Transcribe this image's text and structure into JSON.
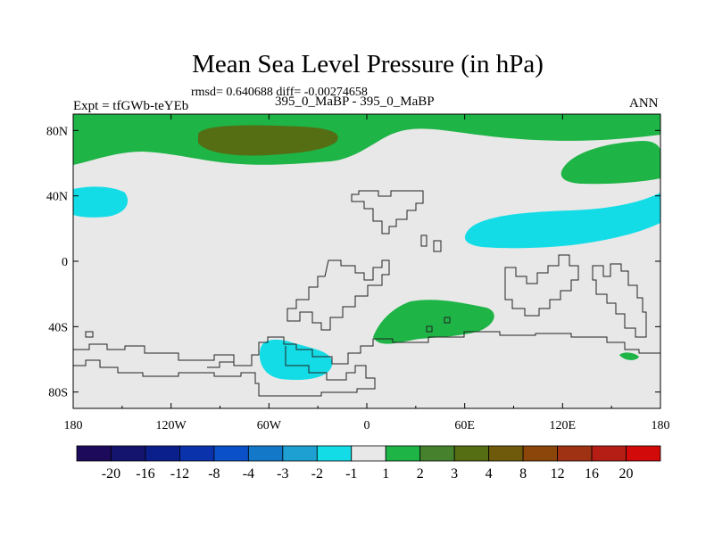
{
  "chart_data": {
    "type": "map-contour",
    "title": "Mean Sea Level Pressure (in hPa)",
    "stats_line": "rmsd= 0.640688 diff= -0.00274658",
    "experiment_label": "Expt = tfGWb-teYEb",
    "case_label": "395_0_MaBP - 395_0_MaBP",
    "season": "ANN",
    "x_axis": {
      "range": [
        -180,
        180
      ],
      "ticks": [
        -180,
        -120,
        -60,
        0,
        60,
        120,
        180
      ],
      "tick_labels": [
        "180",
        "120W",
        "60W",
        "0",
        "60E",
        "120E",
        "180"
      ]
    },
    "y_axis": {
      "range": [
        -90,
        90
      ],
      "ticks": [
        80,
        40,
        0,
        -40,
        -80
      ],
      "tick_labels": [
        "80N",
        "40N",
        "0",
        "40S",
        "80S"
      ]
    },
    "colorbar": {
      "colors": [
        "#1e0a5a",
        "#14146e",
        "#0a1e8c",
        "#0a32aa",
        "#0a50c8",
        "#1478c8",
        "#1ea0d2",
        "#14dce6",
        "#e8e8e8",
        "#1eb446",
        "#46822d",
        "#556e14",
        "#6e5a0a",
        "#8c460a",
        "#a03214",
        "#b41e14",
        "#d20a0a"
      ],
      "labels": [
        "-20",
        "-16",
        "-12",
        "-8",
        "-4",
        "-3",
        "-2",
        "-1",
        "1",
        "2",
        "3",
        "4",
        "8",
        "12",
        "16",
        "20"
      ]
    },
    "regions": [
      {
        "value_bin": "1 to 2",
        "color": "#1eb446",
        "location": "Arctic band, northern high latitudes"
      },
      {
        "value_bin": "3 to 4",
        "color": "#556e14",
        "location": "near 60W-0 at 80N"
      },
      {
        "value_bin": "1 to 2",
        "color": "#1eb446",
        "location": "around 150E at 60N"
      },
      {
        "value_bin": "-2 to -1",
        "color": "#14dce6",
        "location": "around 170W at 40N"
      },
      {
        "value_bin": "-2 to -1",
        "color": "#14dce6",
        "location": "North Pacific, 60E-180 near 30N"
      },
      {
        "value_bin": "1 to 2",
        "color": "#1eb446",
        "location": "around 40E at 40S"
      },
      {
        "value_bin": "-2 to -1",
        "color": "#14dce6",
        "location": "around 50W at 60S"
      },
      {
        "value_bin": "1 to 2",
        "color": "#1eb446",
        "location": "around 160E at 60S-70S"
      }
    ]
  }
}
